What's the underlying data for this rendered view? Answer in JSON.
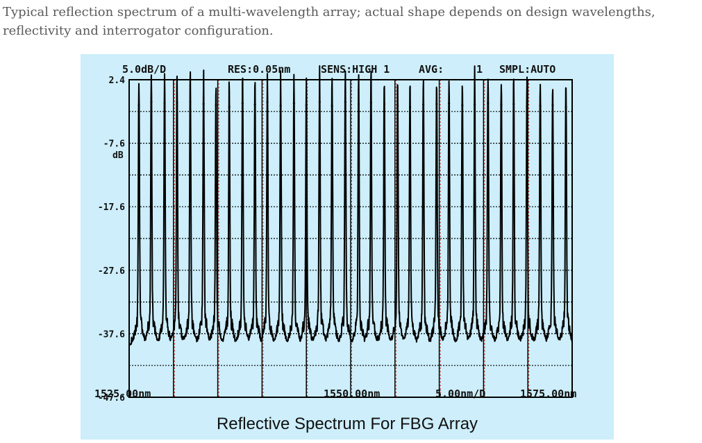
{
  "caption": "Typical reflection spectrum of a multi-wavelength array; actual shape depends on design wavelengths, reflectivity and interrogator configuration.",
  "instrument": {
    "scale": "5.0dB/D",
    "res": "RES:0.05nm",
    "sens": "SENS:HIGH 1",
    "avg_label": "AVG:",
    "avg_value": "1",
    "smpl": "SMPL:AUTO",
    "x_start": "1525.00nm",
    "x_center": "1550.00nm",
    "x_div": "5.00nm/D",
    "x_end": "1575.00nm",
    "y_unit": "dB"
  },
  "colors": {
    "panel_background": "#cdeefa",
    "trace": "#000000",
    "grid_solid": "#000000",
    "grid_dotted": "#cc2200"
  },
  "chart_data": {
    "type": "line",
    "title": "Reflective Spectrum For FBG Array",
    "xlabel": "",
    "ylabel": "dB",
    "xlim": [
      1525,
      1575
    ],
    "ylim": [
      -47.6,
      2.4
    ],
    "y_tick_labels": [
      "2.4",
      "-7.6",
      "-17.6",
      "-27.6",
      "-37.6",
      "-47.6"
    ],
    "y_ticks": [
      2.4,
      -7.6,
      -17.6,
      -27.6,
      -37.6,
      -47.6
    ],
    "grid": true,
    "series": [
      {
        "peak_wavelengths_nm": [
          1526.1,
          1527.5,
          1529.0,
          1530.4,
          1531.9,
          1533.4,
          1534.8,
          1536.3,
          1537.8,
          1539.2,
          1540.6,
          1542.1,
          1543.6,
          1545.0,
          1546.5,
          1547.9,
          1549.4,
          1550.9,
          1552.3,
          1553.8,
          1555.3,
          1556.7,
          1558.2,
          1559.7,
          1561.1,
          1562.6,
          1564.0,
          1565.5,
          1567.0,
          1568.4,
          1569.9,
          1571.4,
          1572.8,
          1574.3
        ],
        "peak_levels_db": [
          -1.5,
          -1.0,
          -1.2,
          -1.1,
          -1.0,
          -1.3,
          -1.5,
          -1.8,
          -1.2,
          -1.4,
          -1.0,
          -1.6,
          -1.2,
          -1.5,
          -1.0,
          -1.6,
          -1.0,
          -1.3,
          -1.1,
          -1.3,
          -1.6,
          -1.8,
          -1.4,
          -1.3,
          -1.2,
          -1.5,
          -1.4,
          -1.2,
          -1.4,
          -1.3,
          -1.7,
          -1.6,
          -1.5,
          -1.8
        ],
        "noise_floor_db": -39.5
      }
    ]
  }
}
